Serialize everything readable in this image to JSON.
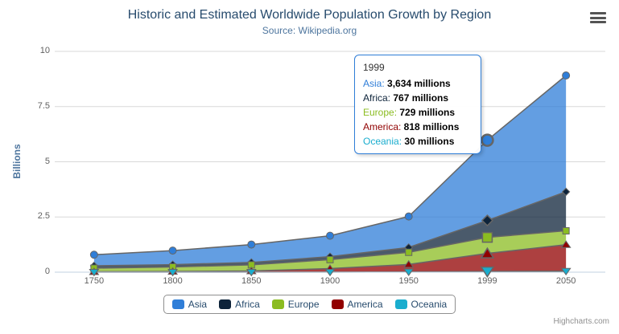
{
  "title": "Historic and Estimated Worldwide Population Growth by Region",
  "subtitle": "Source: Wikipedia.org",
  "credits": "Highcharts.com",
  "colors": {
    "title": "#274b6d",
    "subtitle": "#4d759e",
    "axis_label": "#606060",
    "grid_line": "#d8d8d8",
    "axis_line": "#c0d0e0",
    "series_outline": "#666666",
    "legend_border": "#909090",
    "tooltip_border": "#2f7ed8"
  },
  "chart_data": {
    "type": "area",
    "stacking": "normal",
    "title": "Historic and Estimated Worldwide Population Growth by Region",
    "subtitle": "Source: Wikipedia.org",
    "categories": [
      "1750",
      "1800",
      "1850",
      "1900",
      "1950",
      "1999",
      "2050"
    ],
    "series": [
      {
        "name": "Asia",
        "color": "#2f7ed8",
        "marker": "circle",
        "values": [
          502,
          635,
          809,
          947,
          1402,
          3634,
          5268
        ]
      },
      {
        "name": "Africa",
        "color": "#0d233a",
        "marker": "diamond",
        "values": [
          106,
          107,
          111,
          133,
          221,
          767,
          1766
        ]
      },
      {
        "name": "Europe",
        "color": "#8bbc21",
        "marker": "square",
        "values": [
          163,
          203,
          276,
          408,
          547,
          729,
          628
        ]
      },
      {
        "name": "America",
        "color": "#910000",
        "marker": "triangle",
        "values": [
          18,
          31,
          54,
          156,
          339,
          818,
          1201
        ]
      },
      {
        "name": "Oceania",
        "color": "#1aadce",
        "marker": "triangle-down",
        "values": [
          2,
          2,
          2,
          6,
          13,
          30,
          46
        ]
      }
    ],
    "values_unit": "millions",
    "xlabel": "",
    "ylabel": "Billions",
    "ylim": [
      0,
      10
    ],
    "yticks": [
      0,
      2.5,
      5,
      7.5,
      10
    ],
    "ytick_labels": [
      "0",
      "2.5",
      "5",
      "7.5",
      "10"
    ],
    "grid": true,
    "legend_position": "bottom-center",
    "fill_opacity": 0.75
  },
  "tooltip": {
    "header": "1999",
    "hovered_category_index": 5,
    "hovered_series": "Asia",
    "rows": [
      {
        "label": "Asia",
        "color": "#2f7ed8",
        "value": "3,634 millions"
      },
      {
        "label": "Africa",
        "color": "#0d233a",
        "value": "767 millions"
      },
      {
        "label": "Europe",
        "color": "#8bbc21",
        "value": "729 millions"
      },
      {
        "label": "America",
        "color": "#910000",
        "value": "818 millions"
      },
      {
        "label": "Oceania",
        "color": "#1aadce",
        "value": "30 millions"
      }
    ]
  },
  "legend": {
    "items": [
      "Asia",
      "Africa",
      "Europe",
      "America",
      "Oceania"
    ]
  }
}
